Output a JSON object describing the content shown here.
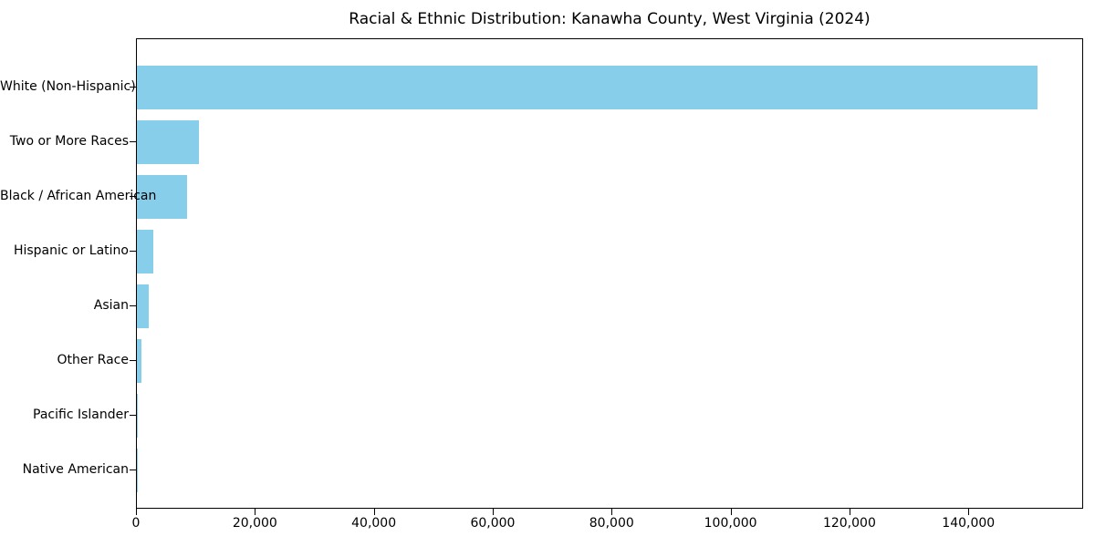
{
  "figure": {
    "background": "#ffffff",
    "text_color": "#000000",
    "spine_color": "#000000"
  },
  "chart_data": {
    "type": "bar",
    "orientation": "horizontal",
    "title": "Racial & Ethnic Distribution: Kanawha County, West Virginia (2024)",
    "categories": [
      "White (Non-Hispanic)",
      "Two or More Races",
      "Black / African American",
      "Hispanic or Latino",
      "Asian",
      "Other Race",
      "Pacific Islander",
      "Native American"
    ],
    "values": [
      151500,
      10500,
      8500,
      2700,
      1950,
      770,
      150,
      40
    ],
    "bar_color": "#87CEEB",
    "xlabel": "",
    "ylabel": "",
    "xlim": [
      0,
      159300
    ],
    "xticks": [
      0,
      20000,
      40000,
      60000,
      80000,
      100000,
      120000,
      140000
    ],
    "xtick_labels": [
      "0",
      "20,000",
      "40,000",
      "60,000",
      "80,000",
      "100,000",
      "120,000",
      "140,000"
    ],
    "grid": false,
    "legend": null
  }
}
